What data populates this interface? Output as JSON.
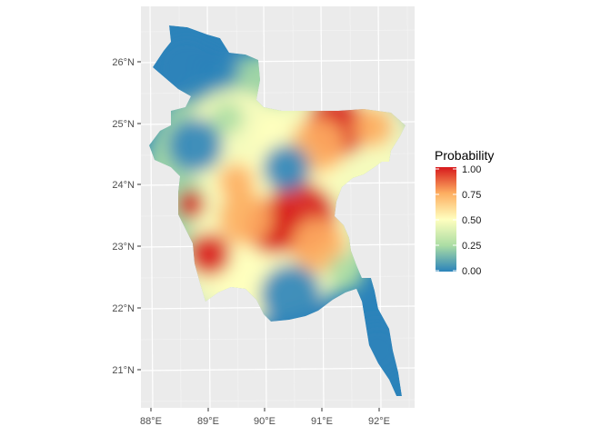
{
  "chart_data": {
    "type": "heatmap",
    "map_region": "Bangladesh",
    "title": "",
    "xlabel": "",
    "ylabel": "",
    "x_ticks": [
      "88°E",
      "89°E",
      "90°E",
      "91°E",
      "92°E"
    ],
    "y_ticks": [
      "21°N",
      "22°N",
      "23°N",
      "24°N",
      "25°N",
      "26°N"
    ],
    "legend": {
      "title": "Probability",
      "labels": [
        "1.00",
        "0.75",
        "0.50",
        "0.25",
        "0.00"
      ],
      "range": [
        0,
        1
      ],
      "colors": [
        "#2b83ba",
        "#abdda4",
        "#ffffbf",
        "#fdae61",
        "#d7191c"
      ]
    },
    "zones_high_probability": [
      "north-east Sylhet basin",
      "central Dhaka–Comilla belt",
      "south-west Jessore–Khulna"
    ],
    "zones_low_probability": [
      "north-west Rangpur",
      "central Mymensingh",
      "southern coast Barisal",
      "Chittagong coastal strip"
    ]
  }
}
